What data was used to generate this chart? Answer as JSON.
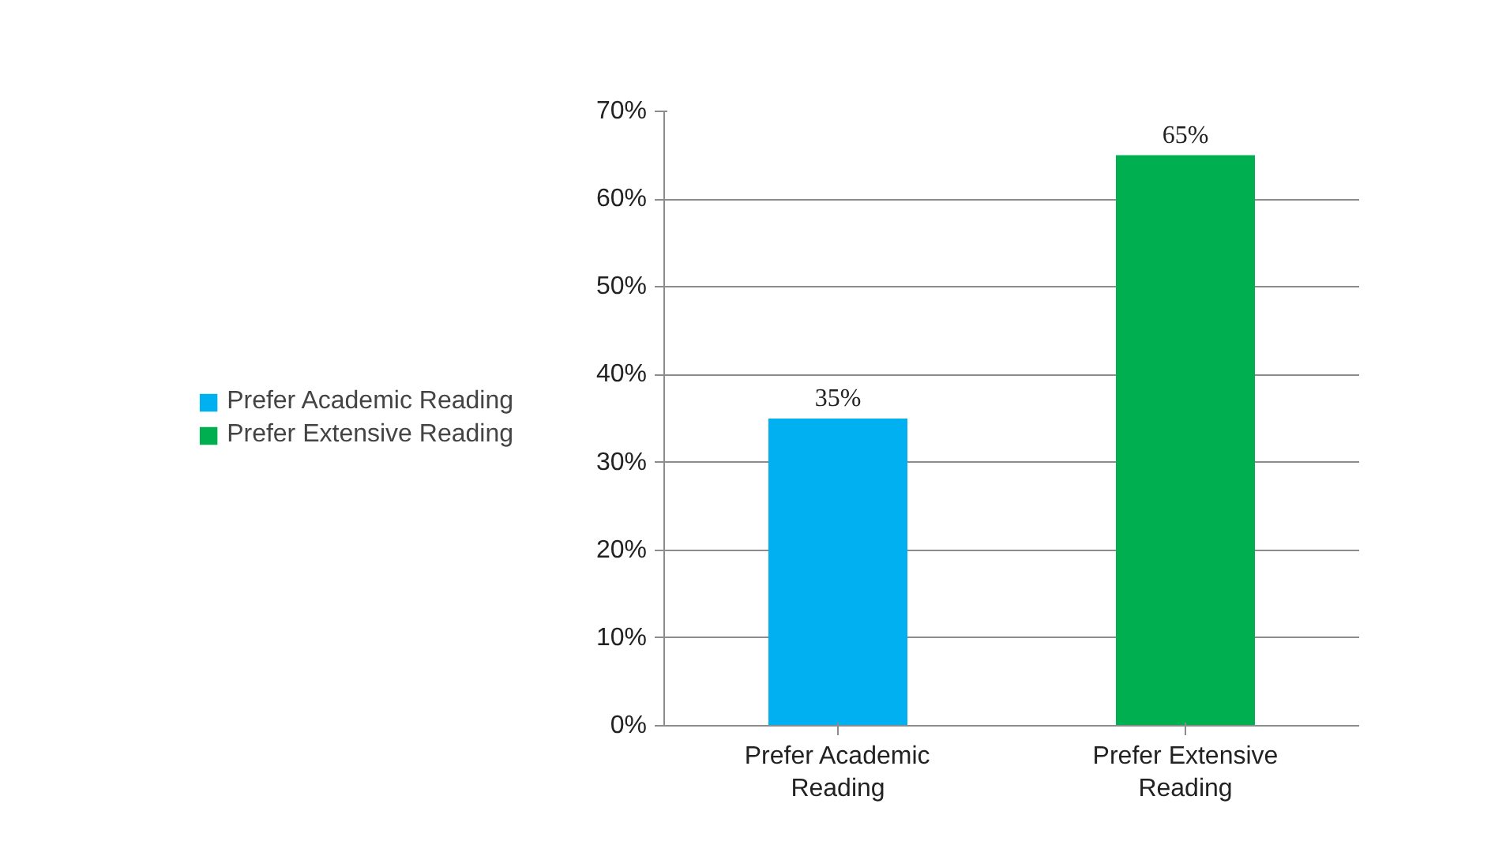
{
  "chart_data": {
    "type": "bar",
    "categories": [
      "Prefer Academic Reading",
      "Prefer Extensive Reading"
    ],
    "series": [
      {
        "name": "Prefer Academic Reading",
        "color": "#00b0f0",
        "values": [
          35,
          null
        ],
        "value_labels": [
          "35%",
          null
        ]
      },
      {
        "name": "Prefer Extensive Reading",
        "color": "#00b050",
        "values": [
          null,
          65
        ],
        "value_labels": [
          null,
          "65%"
        ]
      }
    ],
    "ylim": [
      0,
      70
    ],
    "yticks": [
      {
        "value": 0,
        "label": "0%"
      },
      {
        "value": 10,
        "label": "10%"
      },
      {
        "value": 20,
        "label": "20%"
      },
      {
        "value": 30,
        "label": "30%"
      },
      {
        "value": 40,
        "label": "40%"
      },
      {
        "value": 50,
        "label": "50%"
      },
      {
        "value": 60,
        "label": "60%"
      },
      {
        "value": 70,
        "label": "70%"
      }
    ],
    "grid": "y",
    "legend": "left"
  }
}
